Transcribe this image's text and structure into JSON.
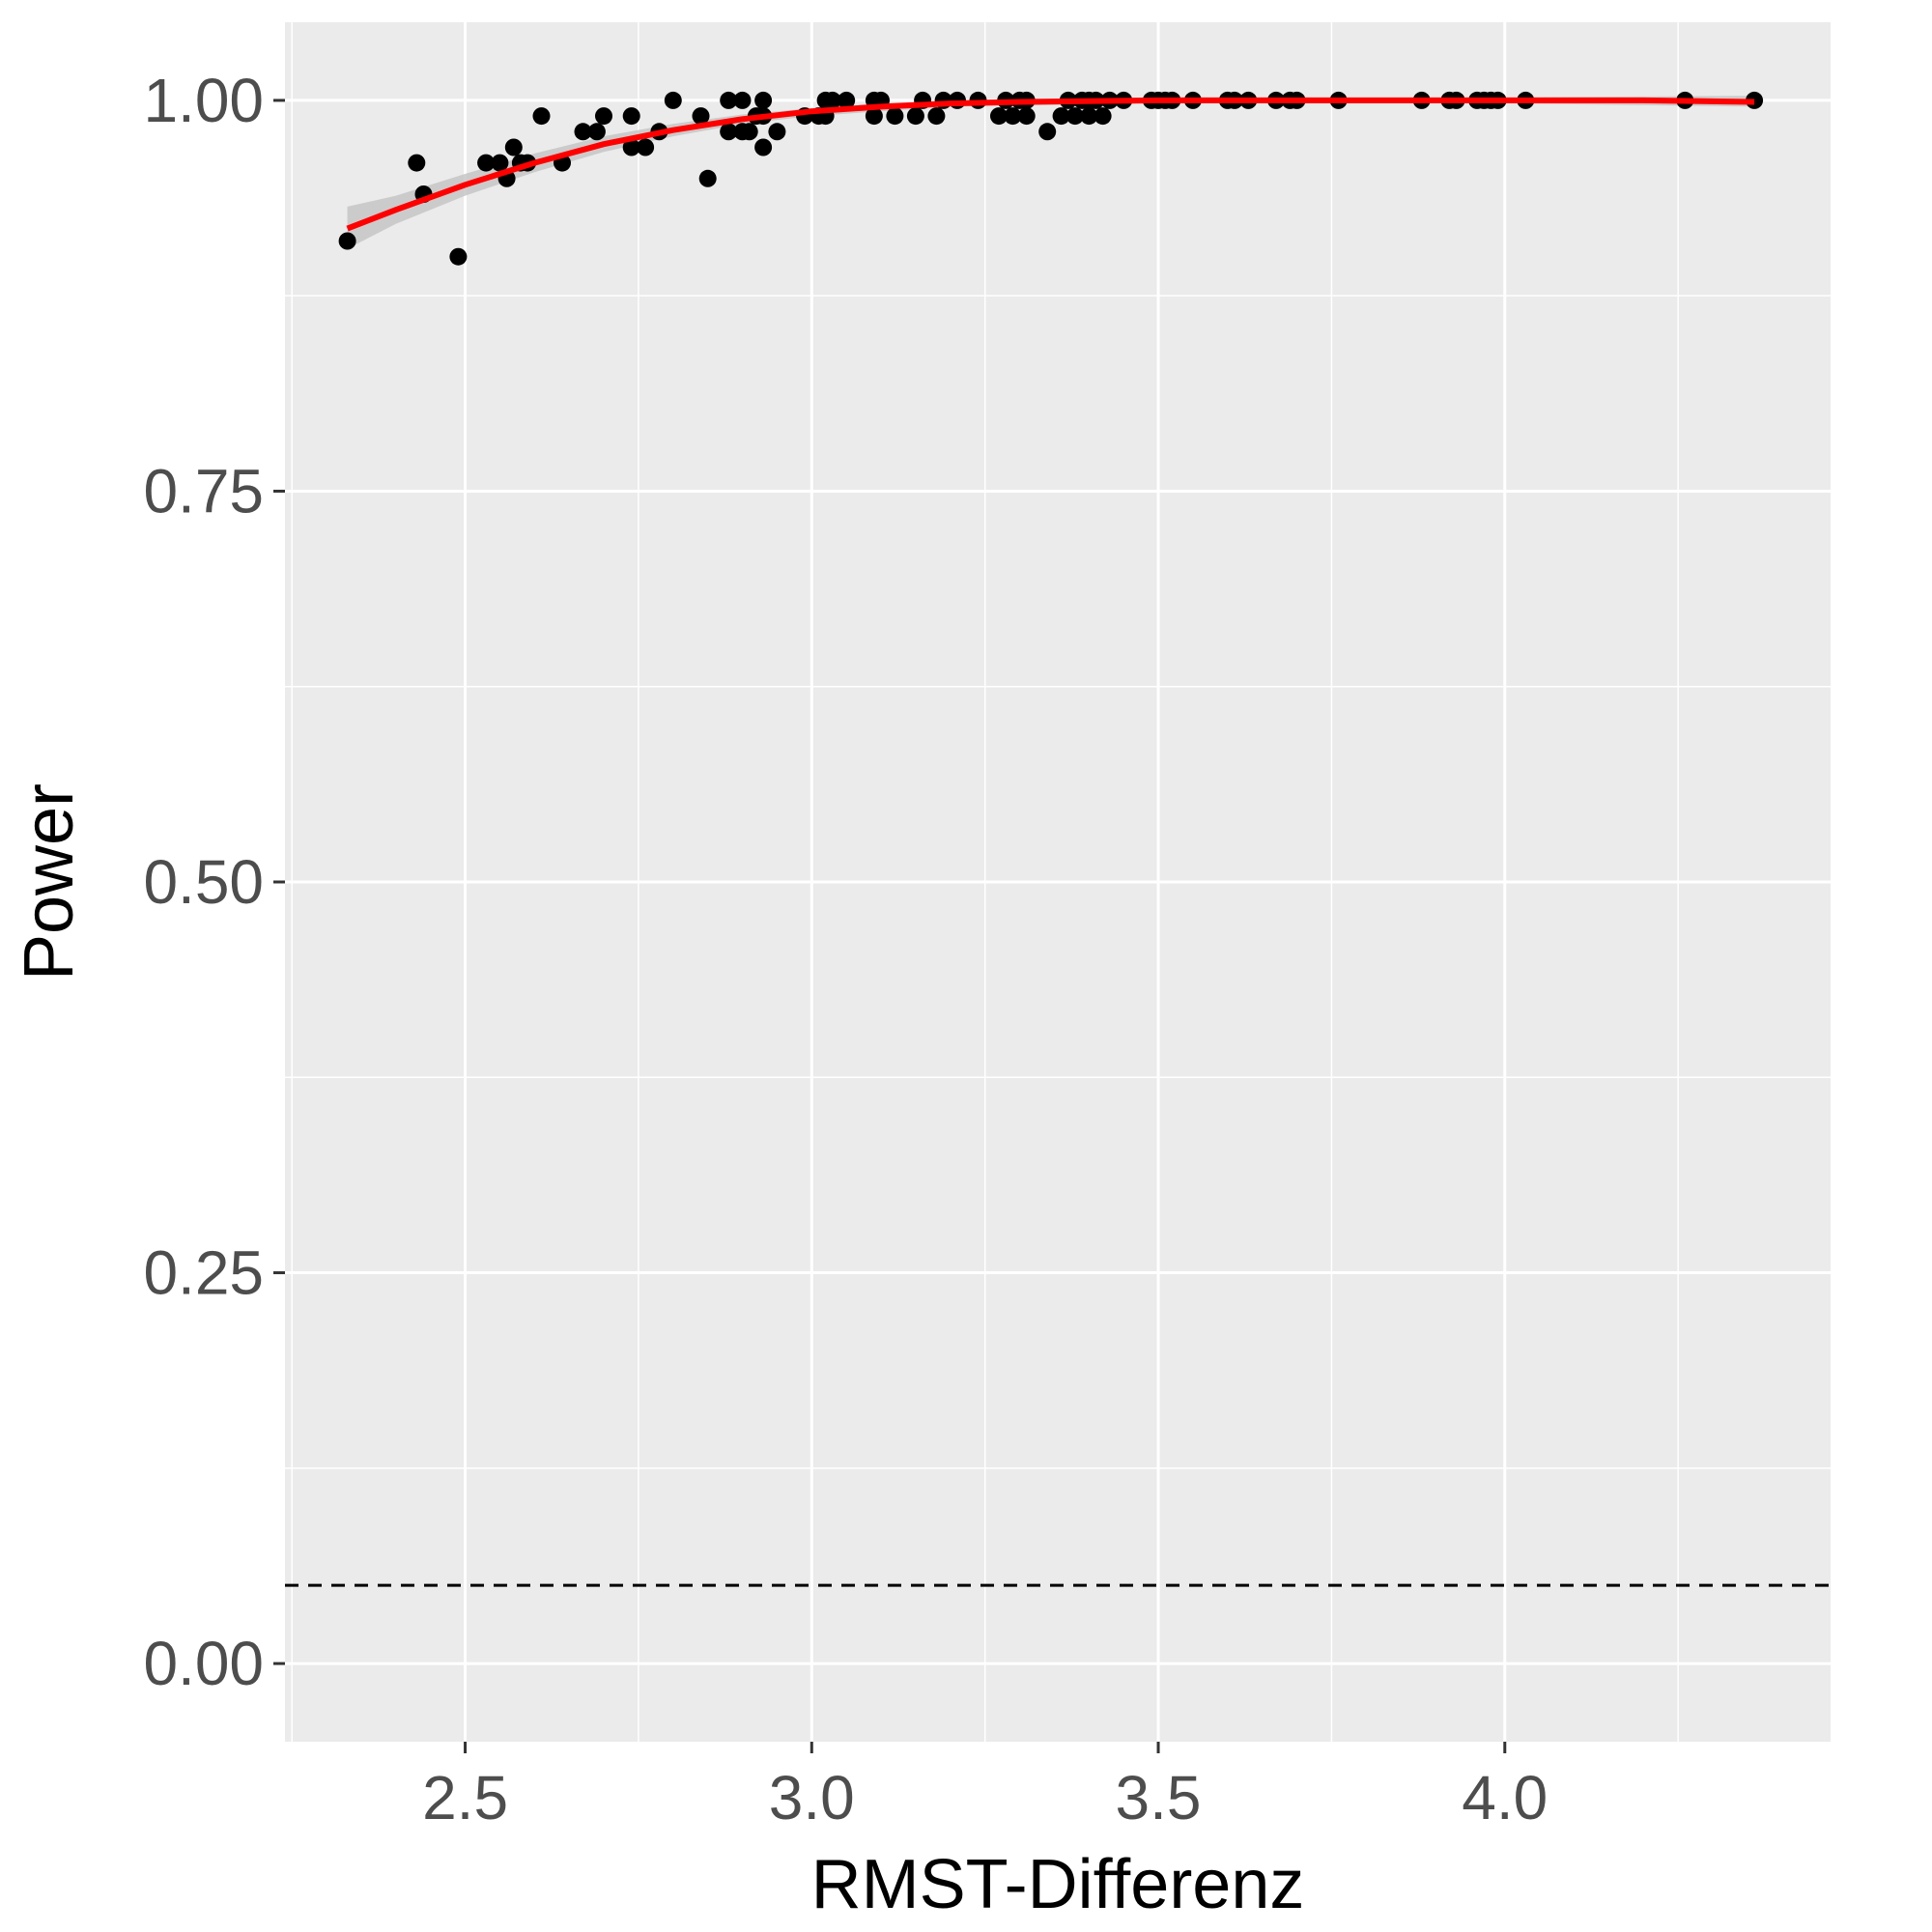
{
  "chart_data": {
    "type": "scatter",
    "xlabel": "RMST-Differenz",
    "ylabel": "Power",
    "xlim": [
      2.24,
      4.47
    ],
    "ylim": [
      -0.05,
      1.05
    ],
    "x_ticks": [
      "2.5",
      "3.0",
      "3.5",
      "4.0"
    ],
    "y_ticks": [
      "0.00",
      "0.25",
      "0.50",
      "0.75",
      "1.00"
    ],
    "grid": true,
    "legend": "none",
    "colors": {
      "panel_background": "#ebebeb",
      "grid": "#ffffff",
      "points": "#000000",
      "smooth_line": "#ff0000",
      "confidence_band": "#c6c6c6",
      "reference_line": "#000000"
    },
    "reference_line": {
      "y": 0.05,
      "style": "dashed"
    },
    "points": [
      [
        2.33,
        0.91
      ],
      [
        2.43,
        0.96
      ],
      [
        2.44,
        0.94
      ],
      [
        2.49,
        0.9
      ],
      [
        2.53,
        0.96
      ],
      [
        2.55,
        0.96
      ],
      [
        2.56,
        0.95
      ],
      [
        2.57,
        0.97
      ],
      [
        2.58,
        0.96
      ],
      [
        2.59,
        0.96
      ],
      [
        2.61,
        0.99
      ],
      [
        2.64,
        0.96
      ],
      [
        2.67,
        0.98
      ],
      [
        2.69,
        0.98
      ],
      [
        2.7,
        0.99
      ],
      [
        2.74,
        0.97
      ],
      [
        2.74,
        0.99
      ],
      [
        2.76,
        0.97
      ],
      [
        2.78,
        0.98
      ],
      [
        2.8,
        1.0
      ],
      [
        2.84,
        0.99
      ],
      [
        2.85,
        0.95
      ],
      [
        2.88,
        1.0
      ],
      [
        2.88,
        0.98
      ],
      [
        2.9,
        0.98
      ],
      [
        2.9,
        1.0
      ],
      [
        2.91,
        0.98
      ],
      [
        2.92,
        0.99
      ],
      [
        2.93,
        1.0
      ],
      [
        2.93,
        0.99
      ],
      [
        2.93,
        0.97
      ],
      [
        2.95,
        0.98
      ],
      [
        2.99,
        0.99
      ],
      [
        3.01,
        0.99
      ],
      [
        3.02,
        1.0
      ],
      [
        3.02,
        0.99
      ],
      [
        3.03,
        1.0
      ],
      [
        3.05,
        1.0
      ],
      [
        3.09,
        0.99
      ],
      [
        3.09,
        1.0
      ],
      [
        3.1,
        1.0
      ],
      [
        3.12,
        0.99
      ],
      [
        3.15,
        0.99
      ],
      [
        3.16,
        1.0
      ],
      [
        3.18,
        0.99
      ],
      [
        3.19,
        1.0
      ],
      [
        3.21,
        1.0
      ],
      [
        3.24,
        1.0
      ],
      [
        3.27,
        0.99
      ],
      [
        3.28,
        1.0
      ],
      [
        3.29,
        0.99
      ],
      [
        3.3,
        1.0
      ],
      [
        3.31,
        1.0
      ],
      [
        3.31,
        0.99
      ],
      [
        3.34,
        0.98
      ],
      [
        3.36,
        0.99
      ],
      [
        3.37,
        1.0
      ],
      [
        3.38,
        0.99
      ],
      [
        3.39,
        1.0
      ],
      [
        3.4,
        1.0
      ],
      [
        3.4,
        0.99
      ],
      [
        3.41,
        1.0
      ],
      [
        3.42,
        0.99
      ],
      [
        3.43,
        1.0
      ],
      [
        3.45,
        1.0
      ],
      [
        3.49,
        1.0
      ],
      [
        3.5,
        1.0
      ],
      [
        3.51,
        1.0
      ],
      [
        3.52,
        1.0
      ],
      [
        3.55,
        1.0
      ],
      [
        3.6,
        1.0
      ],
      [
        3.61,
        1.0
      ],
      [
        3.63,
        1.0
      ],
      [
        3.67,
        1.0
      ],
      [
        3.69,
        1.0
      ],
      [
        3.7,
        1.0
      ],
      [
        3.76,
        1.0
      ],
      [
        3.88,
        1.0
      ],
      [
        3.92,
        1.0
      ],
      [
        3.93,
        1.0
      ],
      [
        3.96,
        1.0
      ],
      [
        3.97,
        1.0
      ],
      [
        3.98,
        1.0
      ],
      [
        3.99,
        1.0
      ],
      [
        4.03,
        1.0
      ],
      [
        4.26,
        1.0
      ],
      [
        4.36,
        1.0
      ]
    ],
    "smooth": [
      [
        2.33,
        0.918
      ],
      [
        2.4,
        0.93
      ],
      [
        2.5,
        0.946
      ],
      [
        2.6,
        0.96
      ],
      [
        2.7,
        0.972
      ],
      [
        2.8,
        0.981
      ],
      [
        2.9,
        0.988
      ],
      [
        3.0,
        0.993
      ],
      [
        3.1,
        0.996
      ],
      [
        3.2,
        0.998
      ],
      [
        3.3,
        0.999
      ],
      [
        3.5,
        1.0
      ],
      [
        3.75,
        1.0
      ],
      [
        4.0,
        1.0
      ],
      [
        4.2,
        1.0
      ],
      [
        4.36,
        0.999
      ]
    ],
    "smooth_band": [
      [
        2.33,
        0.905,
        0.932
      ],
      [
        2.4,
        0.921,
        0.939
      ],
      [
        2.5,
        0.939,
        0.953
      ],
      [
        2.6,
        0.954,
        0.966
      ],
      [
        2.7,
        0.967,
        0.977
      ],
      [
        2.8,
        0.977,
        0.985
      ],
      [
        2.9,
        0.985,
        0.991
      ],
      [
        3.0,
        0.99,
        0.995
      ],
      [
        3.2,
        0.996,
        1.0
      ],
      [
        3.5,
        0.998,
        1.002
      ],
      [
        4.0,
        0.998,
        1.002
      ],
      [
        4.36,
        0.996,
        1.003
      ]
    ]
  }
}
